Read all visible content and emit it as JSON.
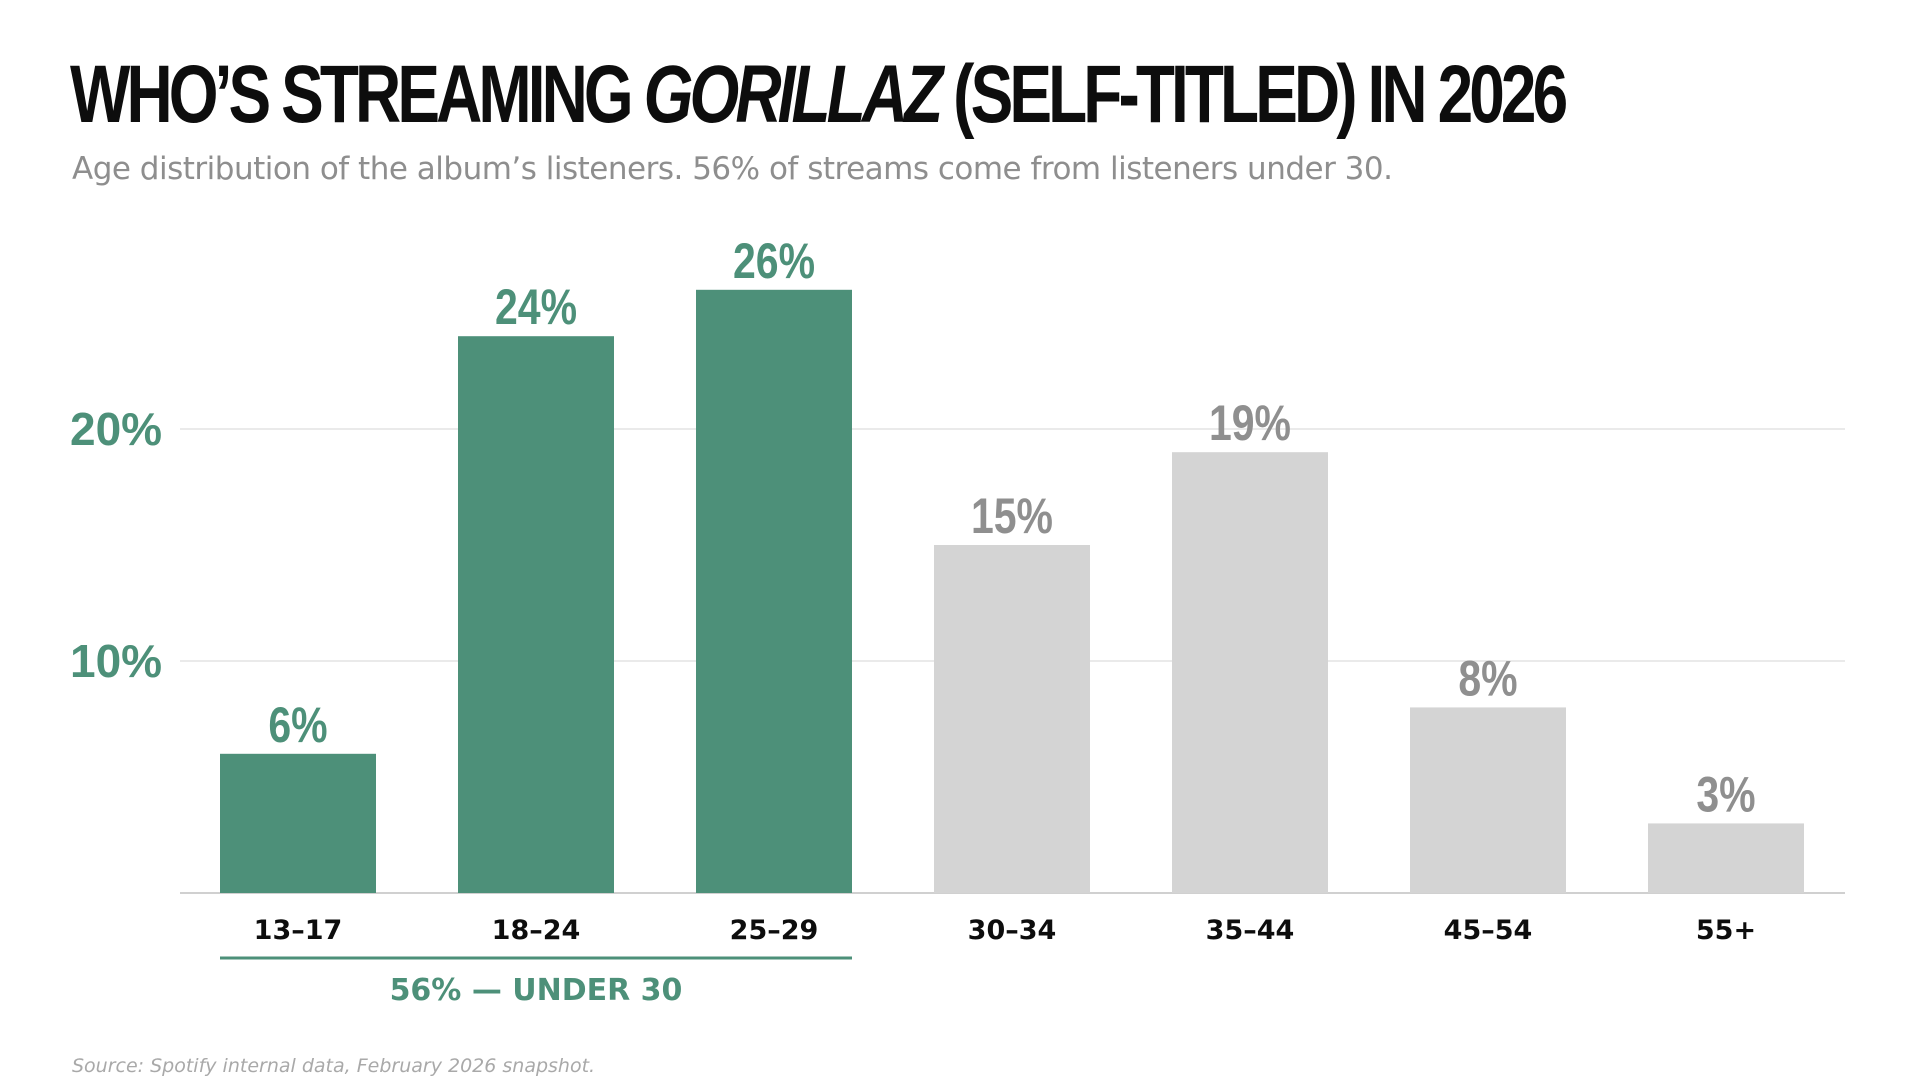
{
  "title_before": "WHO’S STREAMING ",
  "title_italic": "GORILLAZ",
  "title_after": " (SELF-TITLED) IN 2026",
  "subtitle": "Age distribution of the album’s listeners. 56% of streams come from listeners under 30.",
  "source": "Source: Spotify internal data, February 2026 snapshot.",
  "colors": {
    "highlight": "#4d9079",
    "muted_bar": "#d4d4d4",
    "muted_label": "#8f8f8f",
    "gridline": "#e4e4e4",
    "axis": "#d0d0d0"
  },
  "chart_data": {
    "type": "bar",
    "title": "WHO’S STREAMING GORILLAZ (SELF-TITLED) IN 2026",
    "xlabel": "",
    "ylabel": "",
    "ylim": [
      0,
      30
    ],
    "yticks": [
      10,
      20
    ],
    "ytick_labels": [
      "10%",
      "20%"
    ],
    "grid": true,
    "categories": [
      "13–17",
      "18–24",
      "25–29",
      "30–34",
      "35–44",
      "45–54",
      "55+"
    ],
    "values": [
      6,
      24,
      26,
      15,
      19,
      8,
      3
    ],
    "value_labels": [
      "6%",
      "24%",
      "26%",
      "15%",
      "19%",
      "8%",
      "3%"
    ],
    "highlighted": [
      true,
      true,
      true,
      false,
      false,
      false,
      false
    ],
    "annotation": {
      "label": "56% — UNDER 30",
      "start_category": 0,
      "end_category": 2
    }
  }
}
